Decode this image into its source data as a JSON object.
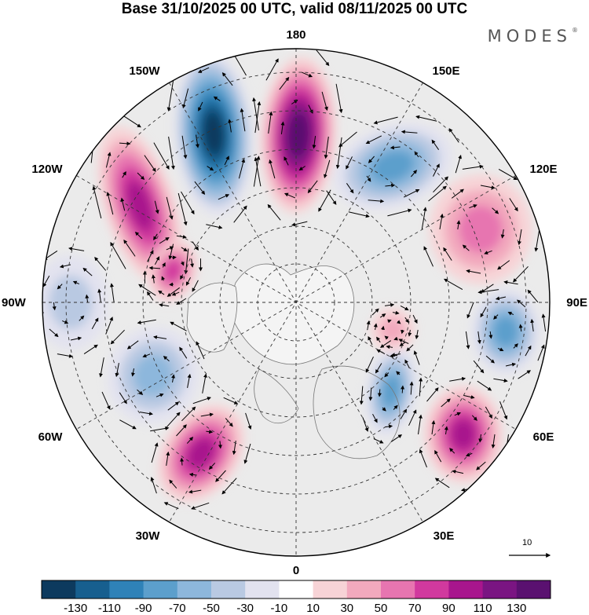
{
  "title": "Base 31/10/2025 00 UTC, valid 08/11/2025 00 UTC",
  "brand": "MODES",
  "brand_mark": "®",
  "longitude_labels": {
    "deg180": "180",
    "w150": "150W",
    "e150": "150E",
    "w120": "120W",
    "e120": "120E",
    "w90": "90W",
    "e90": "90E",
    "w60": "60W",
    "e60": "60E",
    "w30": "30W",
    "e30": "30E",
    "deg0": "0"
  },
  "vector_reference": "10",
  "colorbar": {
    "levels": [
      "-130",
      "-110",
      "-90",
      "-70",
      "-50",
      "-30",
      "-10",
      "10",
      "30",
      "50",
      "70",
      "90",
      "110",
      "130"
    ],
    "colors": [
      "#0d3a5e",
      "#175f8f",
      "#2f82b8",
      "#5c9fcc",
      "#8db7dc",
      "#b9c9e2",
      "#e2e2ef",
      "#ffffff",
      "#f7d3d6",
      "#f2a9bd",
      "#e775b0",
      "#d1399e",
      "#a8168d",
      "#7a1582",
      "#5a1170"
    ]
  },
  "anomaly_centres": [
    {
      "id": "A",
      "sign": "negative",
      "peak": -130
    },
    {
      "id": "B",
      "sign": "positive",
      "peak": 130
    },
    {
      "id": "C",
      "sign": "positive",
      "peak": 90
    },
    {
      "id": "D",
      "sign": "negative",
      "peak": -70
    },
    {
      "id": "E",
      "sign": "positive",
      "peak": 50
    },
    {
      "id": "F",
      "sign": "negative",
      "peak": -70
    },
    {
      "id": "G",
      "sign": "positive",
      "peak": 90
    },
    {
      "id": "H",
      "sign": "negative",
      "peak": -50
    },
    {
      "id": "I",
      "sign": "positive",
      "peak": 90
    },
    {
      "id": "J",
      "sign": "negative",
      "peak": -70
    },
    {
      "id": "K",
      "sign": "positive",
      "peak": 70
    },
    {
      "id": "L",
      "sign": "negative",
      "peak": -30
    },
    {
      "id": "M",
      "sign": "positive",
      "peak": 30
    }
  ]
}
